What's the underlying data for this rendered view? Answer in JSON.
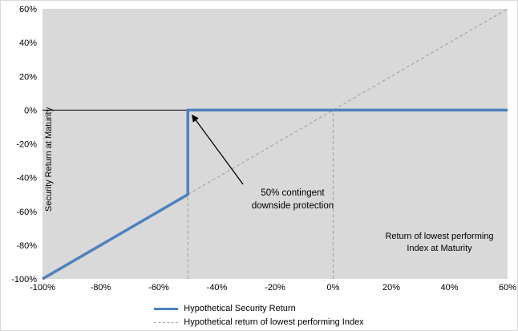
{
  "chart_data": {
    "type": "line",
    "title": "",
    "xlabel": "Return of lowest performing Index at Maturity",
    "xlabel_lines": [
      "Return of lowest performing",
      "Index at Maturity"
    ],
    "ylabel": "Security Return at Maturity",
    "xlim": [
      -100,
      60
    ],
    "ylim": [
      -100,
      60
    ],
    "grid": false,
    "plot_background": "#d9d9d9",
    "zero_line_color": "#000000",
    "guide_color": "#a6a6a6",
    "x_tick_values": [
      -100,
      -80,
      -60,
      -40,
      -20,
      0,
      20,
      40,
      60
    ],
    "x_tick_labels": [
      "-100%",
      "-80%",
      "-60%",
      "-40%",
      "-20%",
      "0%",
      "20%",
      "40%",
      "60%"
    ],
    "y_tick_values": [
      -100,
      -80,
      -60,
      -40,
      -20,
      0,
      20,
      40,
      60
    ],
    "y_tick_labels": [
      "-100%",
      "-80%",
      "-60%",
      "-40%",
      "-20%",
      "0%",
      "20%",
      "40%",
      "60%"
    ],
    "series": [
      {
        "name": "Hypothetical Security Return",
        "color": "#4f81bd",
        "dash": "solid",
        "stroke_width": 3.5,
        "points": [
          [
            -100,
            -100
          ],
          [
            -50,
            -50
          ],
          [
            -50,
            0
          ],
          [
            60,
            0
          ]
        ]
      },
      {
        "name": "Hypothetical return of lowest performing Index",
        "color": "#a6a6a6",
        "dash": "dashed",
        "stroke_width": 1.2,
        "points": [
          [
            -100,
            -100
          ],
          [
            60,
            60
          ]
        ]
      }
    ],
    "guide_lines": [
      {
        "x": -50,
        "y_from": -100,
        "y_to": 0
      },
      {
        "x": 0,
        "y_from": -100,
        "y_to": 0
      }
    ],
    "annotation": {
      "lines": [
        "50% contingent",
        "downside protection"
      ],
      "arrow_from": [
        -31,
        -44
      ],
      "arrow_to": [
        -48.5,
        -3
      ]
    },
    "legend": {
      "position": "bottom-center",
      "items": [
        {
          "label": "Hypothetical Security Return",
          "color": "#4f81bd",
          "dash": "solid"
        },
        {
          "label": "Hypothetical return of lowest performing Index",
          "color": "#a6a6a6",
          "dash": "dashed"
        }
      ]
    }
  }
}
